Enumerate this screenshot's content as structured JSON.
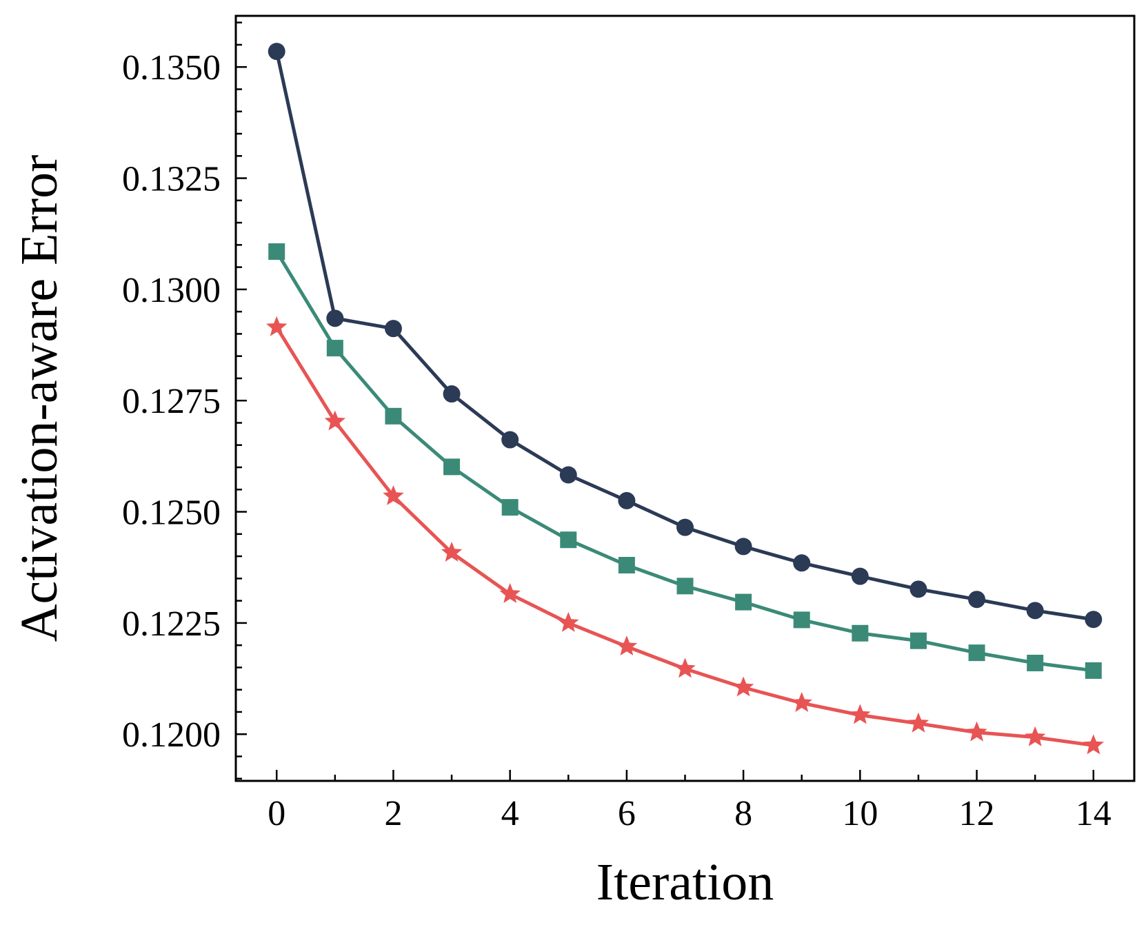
{
  "chart_data": {
    "type": "line",
    "title": "",
    "xlabel": "Iteration",
    "ylabel": "Activation-aware Error",
    "xlim": [
      -0.7,
      14.7
    ],
    "ylim": [
      0.11895,
      0.13615
    ],
    "x_ticks": [
      0,
      2,
      4,
      6,
      8,
      10,
      12,
      14
    ],
    "x_tick_labels": [
      "0",
      "2",
      "4",
      "6",
      "8",
      "10",
      "12",
      "14"
    ],
    "y_ticks": [
      0.12,
      0.1225,
      0.125,
      0.1275,
      0.13,
      0.1325,
      0.135
    ],
    "y_tick_labels": [
      "0.1200",
      "0.1225",
      "0.1250",
      "0.1275",
      "0.1300",
      "0.1325",
      "0.1350"
    ],
    "grid": false,
    "legend": "none",
    "x": [
      0,
      1,
      2,
      3,
      4,
      5,
      6,
      7,
      8,
      9,
      10,
      11,
      12,
      13,
      14
    ],
    "series": [
      {
        "name": "series-circle",
        "marker": "circle",
        "color": "#2b3a55",
        "values": [
          0.13535,
          0.12935,
          0.12912,
          0.12765,
          0.12662,
          0.12583,
          0.12525,
          0.12465,
          0.12422,
          0.12385,
          0.12355,
          0.12326,
          0.12303,
          0.12278,
          0.12258
        ]
      },
      {
        "name": "series-square",
        "marker": "square",
        "color": "#3b8a78",
        "values": [
          0.13085,
          0.12868,
          0.12715,
          0.12601,
          0.1251,
          0.12437,
          0.1238,
          0.12333,
          0.12297,
          0.12257,
          0.12227,
          0.1221,
          0.12183,
          0.1216,
          0.12143
        ]
      },
      {
        "name": "series-star",
        "marker": "star",
        "color": "#e85454",
        "values": [
          0.12915,
          0.12703,
          0.12535,
          0.12408,
          0.12315,
          0.1225,
          0.12197,
          0.12147,
          0.12105,
          0.1207,
          0.12043,
          0.12024,
          0.12004,
          0.11993,
          0.11975
        ]
      }
    ]
  }
}
